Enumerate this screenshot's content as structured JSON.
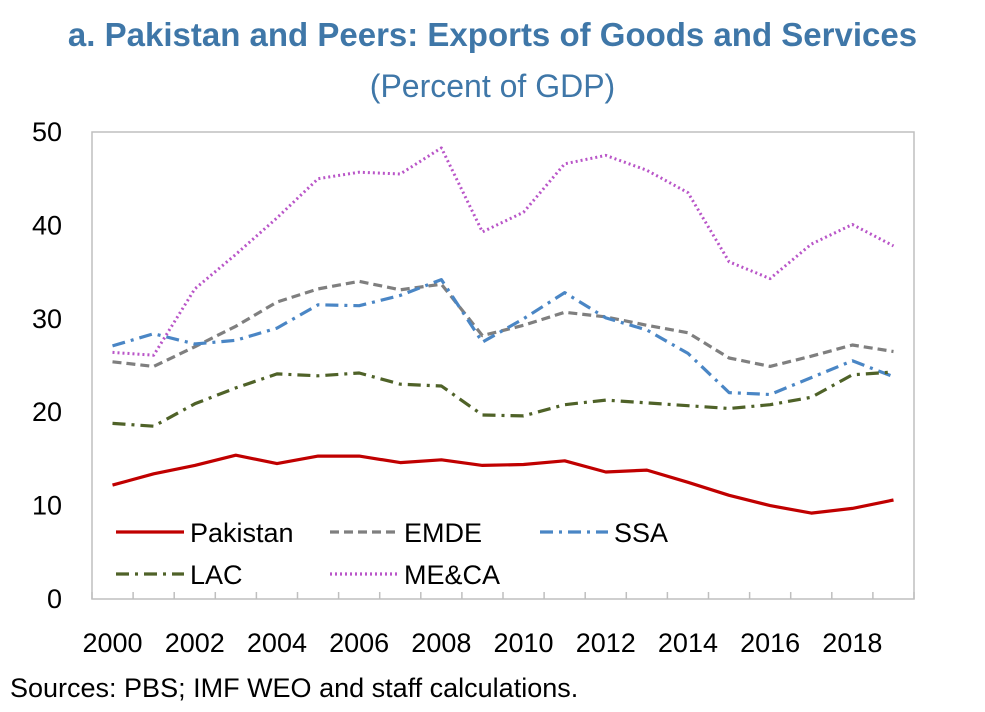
{
  "chart_data": {
    "type": "line",
    "title": "a. Pakistan and Peers: Exports of Goods and Services",
    "subtitle": "(Percent of GDP)",
    "xlabel": "",
    "ylabel": "",
    "x": [
      2000,
      2001,
      2002,
      2003,
      2004,
      2005,
      2006,
      2007,
      2008,
      2009,
      2010,
      2011,
      2012,
      2013,
      2014,
      2015,
      2016,
      2017,
      2018,
      2019
    ],
    "x_tick_labels": [
      "2000",
      "2002",
      "2004",
      "2006",
      "2008",
      "2010",
      "2012",
      "2014",
      "2016",
      "2018"
    ],
    "ylim": [
      0,
      50
    ],
    "y_ticks": [
      "0",
      "10",
      "20",
      "30",
      "40",
      "50"
    ],
    "grid": false,
    "legend_position": "bottom-left inside",
    "series": [
      {
        "name": "Pakistan",
        "style": "solid",
        "color": "#c00000",
        "values": [
          12.2,
          13.4,
          14.3,
          15.4,
          14.5,
          15.3,
          15.3,
          14.6,
          14.9,
          14.3,
          14.4,
          14.8,
          13.6,
          13.8,
          12.5,
          11.1,
          10.0,
          9.2,
          9.7,
          10.6
        ]
      },
      {
        "name": "EMDE",
        "style": "dashed",
        "color": "#7f7f7f",
        "values": [
          25.4,
          24.9,
          27.0,
          29.2,
          31.8,
          33.2,
          34.0,
          33.1,
          33.7,
          28.2,
          29.3,
          30.7,
          30.2,
          29.3,
          28.5,
          25.8,
          24.9,
          26.0,
          27.2,
          26.5
        ]
      },
      {
        "name": "SSA",
        "style": "dash-dot",
        "color": "#4a86c5",
        "values": [
          27.1,
          28.4,
          27.3,
          27.7,
          29.0,
          31.5,
          31.4,
          32.5,
          34.2,
          27.5,
          30.0,
          32.8,
          30.1,
          28.8,
          26.3,
          22.1,
          21.9,
          23.7,
          25.5,
          23.8
        ]
      },
      {
        "name": "LAC",
        "style": "dash-dot",
        "color": "#4f6228",
        "values": [
          18.8,
          18.5,
          20.9,
          22.6,
          24.1,
          23.9,
          24.2,
          23.0,
          22.8,
          19.7,
          19.6,
          20.8,
          21.3,
          21.0,
          20.7,
          20.4,
          20.8,
          21.6,
          24.0,
          24.3
        ]
      },
      {
        "name": "ME&CA",
        "style": "dotted",
        "color": "#b955c8",
        "values": [
          26.4,
          26.1,
          33.2,
          36.9,
          40.8,
          45.0,
          45.7,
          45.5,
          48.3,
          39.3,
          41.4,
          46.6,
          47.5,
          45.9,
          43.5,
          36.1,
          34.3,
          38.0,
          40.1,
          37.8
        ]
      }
    ]
  },
  "source_text": "Sources: PBS; IMF WEO and staff calculations."
}
